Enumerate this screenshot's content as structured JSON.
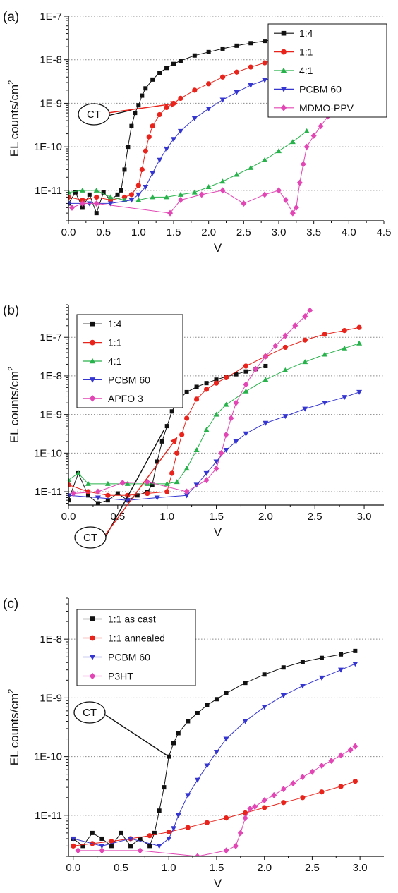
{
  "figure": {
    "colors": {
      "black": "#111111",
      "red": "#e8231b",
      "green": "#28b24b",
      "blue": "#3535d0",
      "magenta": "#e246b4",
      "grid": "#8a8a8a"
    }
  },
  "chart_data": [
    {
      "type": "scatter",
      "panel_label": "(a)",
      "xlabel": "V",
      "ylabel": "EL counts/cm",
      "ylabel_sup": "2",
      "yscale": "log",
      "xlim": [
        0.0,
        4.5
      ],
      "ylim": [
        2e-12,
        1e-07
      ],
      "xticks": [
        0.0,
        0.5,
        1.0,
        1.5,
        2.0,
        2.5,
        3.0,
        3.5,
        4.0,
        4.5
      ],
      "xtick_labels": [
        "0.0",
        "0.5",
        "1.0",
        "1.5",
        "2.0",
        "2.5",
        "3.0",
        "3.5",
        "4.0",
        "4.5"
      ],
      "yticks": [
        1e-11,
        1e-10,
        1e-09,
        1e-08,
        1e-07
      ],
      "ytick_labels": [
        "1E-11",
        "1E-10",
        "1E-9",
        "1E-8",
        "1E-7"
      ],
      "grid": "horizontal dotted at decades",
      "legend_position": "top-right",
      "annotation": {
        "text": "CT",
        "points_to": [
          [
            0.9,
            7e-10
          ],
          [
            1.55,
            1e-09
          ]
        ]
      },
      "series": [
        {
          "name": "1:4",
          "color": "black",
          "marker": "square",
          "x": [
            0.0,
            0.1,
            0.2,
            0.3,
            0.4,
            0.5,
            0.6,
            0.7,
            0.75,
            0.8,
            0.85,
            0.9,
            0.95,
            1.0,
            1.05,
            1.1,
            1.2,
            1.3,
            1.4,
            1.5,
            1.6,
            1.8,
            2.0,
            2.2,
            2.4,
            2.6,
            2.8,
            3.0
          ],
          "y": [
            5e-12,
            9e-12,
            4e-12,
            8e-12,
            3e-12,
            9e-12,
            6e-12,
            8e-12,
            1e-11,
            3e-11,
            1e-10,
            3e-10,
            6e-10,
            9e-10,
            1.5e-09,
            2.2e-09,
            3.5e-09,
            5e-09,
            6.5e-09,
            8e-09,
            9.5e-09,
            1.25e-08,
            1.5e-08,
            1.8e-08,
            2.1e-08,
            2.4e-08,
            2.7e-08,
            3e-08
          ]
        },
        {
          "name": "1:1",
          "color": "red",
          "marker": "circle",
          "x": [
            0.0,
            0.2,
            0.4,
            0.6,
            0.8,
            0.9,
            1.0,
            1.05,
            1.1,
            1.15,
            1.2,
            1.3,
            1.4,
            1.5,
            1.6,
            1.8,
            2.0,
            2.2,
            2.4,
            2.6,
            2.8,
            3.0
          ],
          "y": [
            7e-12,
            6e-12,
            7e-12,
            6e-12,
            7e-12,
            8e-12,
            1.3e-11,
            3e-11,
            8e-11,
            1.7e-10,
            3e-10,
            5.5e-10,
            8e-10,
            1e-09,
            1.3e-09,
            2e-09,
            2.8e-09,
            4e-09,
            5.2e-09,
            6.8e-09,
            8.5e-09,
            1.05e-08
          ]
        },
        {
          "name": "4:1",
          "color": "green",
          "marker": "triangle-up",
          "x": [
            0.0,
            0.2,
            0.4,
            0.6,
            0.8,
            1.0,
            1.2,
            1.4,
            1.6,
            1.8,
            2.0,
            2.2,
            2.4,
            2.6,
            2.8,
            3.0,
            3.2,
            3.4
          ],
          "y": [
            9e-12,
            1e-11,
            1e-11,
            7e-12,
            6e-12,
            6e-12,
            7e-12,
            7e-12,
            8e-12,
            9e-12,
            1.2e-11,
            1.6e-11,
            2.3e-11,
            3.3e-11,
            5e-11,
            8e-11,
            1.3e-10,
            2.3e-10
          ]
        },
        {
          "name": "PCBM 60",
          "color": "blue",
          "marker": "triangle-down",
          "x": [
            0.0,
            0.3,
            0.6,
            0.9,
            1.0,
            1.1,
            1.2,
            1.3,
            1.4,
            1.5,
            1.6,
            1.8,
            2.0,
            2.2,
            2.4,
            2.6,
            2.8,
            2.9
          ],
          "y": [
            5e-12,
            5e-12,
            5e-12,
            6e-12,
            8e-12,
            1.2e-11,
            2.5e-11,
            5e-11,
            9e-11,
            1.5e-10,
            2.3e-10,
            4.5e-10,
            7.5e-10,
            1.2e-09,
            1.8e-09,
            2.6e-09,
            3.4e-09,
            3.8e-09
          ]
        },
        {
          "name": "MDMO-PPV",
          "color": "magenta",
          "marker": "diamond",
          "x": [
            0.05,
            0.2,
            0.4,
            1.45,
            1.6,
            1.9,
            2.2,
            2.5,
            2.8,
            3.0,
            3.1,
            3.2,
            3.25,
            3.3,
            3.35,
            3.4,
            3.5,
            3.6,
            3.7,
            3.8,
            3.9,
            4.0,
            4.1
          ],
          "y": [
            4e-12,
            5e-12,
            5e-12,
            3e-12,
            6e-12,
            8e-12,
            1e-11,
            5e-12,
            8e-12,
            1e-11,
            6e-12,
            3e-12,
            4e-12,
            1.5e-11,
            4e-11,
            1e-10,
            1.8e-10,
            3e-10,
            5e-10,
            8e-10,
            1.2e-09,
            1.6e-09,
            2e-09
          ]
        }
      ]
    },
    {
      "type": "scatter",
      "panel_label": "(b)",
      "xlabel": "V",
      "ylabel": "EL counts/cm",
      "ylabel_sup": "2",
      "yscale": "log",
      "xlim": [
        0.0,
        3.2
      ],
      "ylim": [
        4.5e-12,
        7e-07
      ],
      "xticks": [
        0.0,
        0.5,
        1.0,
        1.5,
        2.0,
        2.5,
        3.0
      ],
      "xtick_labels": [
        "0.0",
        "0.5",
        "1.0",
        "1.5",
        "2.0",
        "2.5",
        "3.0"
      ],
      "yticks": [
        1e-11,
        1e-10,
        1e-09,
        1e-08,
        1e-07
      ],
      "ytick_labels": [
        "1E-11",
        "1E-10",
        "1E-9",
        "1E-8",
        "1E-7"
      ],
      "grid": "horizontal dotted at decades",
      "legend_position": "top-left",
      "annotation": {
        "text": "CT",
        "points_to": [
          [
            0.97,
            4e-10
          ],
          [
            1.1,
            2.5e-10
          ]
        ]
      },
      "series": [
        {
          "name": "1:4",
          "color": "black",
          "marker": "square",
          "x": [
            0.0,
            0.1,
            0.2,
            0.3,
            0.4,
            0.5,
            0.6,
            0.7,
            0.8,
            0.85,
            0.9,
            0.95,
            1.0,
            1.05,
            1.1,
            1.2,
            1.3,
            1.4,
            1.5,
            1.6,
            1.7,
            1.8,
            1.9,
            2.0
          ],
          "y": [
            6e-12,
            3e-11,
            8e-12,
            5e-12,
            6e-12,
            9e-12,
            6e-12,
            8e-12,
            1e-11,
            1.5e-11,
            6e-11,
            2e-10,
            5e-10,
            1.2e-09,
            2.2e-09,
            3.8e-09,
            5.2e-09,
            6.5e-09,
            8e-09,
            9.5e-09,
            1.1e-08,
            1.3e-08,
            1.5e-08,
            1.8e-08
          ]
        },
        {
          "name": "1:1",
          "color": "red",
          "marker": "circle",
          "x": [
            0.0,
            0.2,
            0.4,
            0.6,
            0.8,
            1.0,
            1.05,
            1.1,
            1.15,
            1.2,
            1.3,
            1.4,
            1.5,
            1.6,
            1.8,
            2.0,
            2.2,
            2.4,
            2.6,
            2.8,
            2.95
          ],
          "y": [
            1.5e-11,
            1e-11,
            8e-12,
            8e-12,
            9e-12,
            1e-11,
            3e-11,
            1e-10,
            3e-10,
            8e-10,
            2.5e-09,
            4.5e-09,
            6.5e-09,
            9e-09,
            1.8e-08,
            3.2e-08,
            5.5e-08,
            8.5e-08,
            1.2e-07,
            1.5e-07,
            1.8e-07
          ]
        },
        {
          "name": "4:1",
          "color": "green",
          "marker": "triangle-up",
          "x": [
            0.0,
            0.1,
            0.2,
            0.4,
            0.6,
            0.8,
            1.0,
            1.1,
            1.2,
            1.3,
            1.4,
            1.5,
            1.6,
            1.8,
            2.0,
            2.2,
            2.4,
            2.6,
            2.8,
            2.95
          ],
          "y": [
            2e-11,
            3e-11,
            1.6e-11,
            1.6e-11,
            1.6e-11,
            1.6e-11,
            1.6e-11,
            1.8e-11,
            4e-11,
            1.2e-10,
            4e-10,
            1e-09,
            1.8e-09,
            4e-09,
            8e-09,
            1.4e-08,
            2.3e-08,
            3.6e-08,
            5.2e-08,
            7e-08
          ]
        },
        {
          "name": "PCBM 60",
          "color": "blue",
          "marker": "triangle-down",
          "x": [
            0.0,
            0.3,
            0.6,
            0.9,
            1.2,
            1.3,
            1.4,
            1.5,
            1.6,
            1.7,
            1.8,
            2.0,
            2.2,
            2.4,
            2.6,
            2.8,
            2.95
          ],
          "y": [
            8e-12,
            7e-12,
            6e-12,
            7e-12,
            8e-12,
            1.5e-11,
            3e-11,
            6e-11,
            1.2e-10,
            2e-10,
            3.2e-10,
            6e-10,
            9e-10,
            1.4e-09,
            2e-09,
            2.8e-09,
            3.8e-09
          ]
        },
        {
          "name": "APFO 3",
          "color": "magenta",
          "marker": "diamond",
          "x": [
            0.05,
            0.3,
            0.55,
            0.8,
            1.2,
            1.4,
            1.5,
            1.55,
            1.6,
            1.65,
            1.7,
            1.8,
            1.9,
            2.0,
            2.1,
            2.2,
            2.3,
            2.4,
            2.45
          ],
          "y": [
            9e-12,
            1e-11,
            1.7e-11,
            1.8e-11,
            1e-11,
            2e-11,
            4e-11,
            1e-10,
            3e-10,
            8e-10,
            2e-09,
            6e-09,
            1.5e-08,
            3.2e-08,
            6e-08,
            1.1e-07,
            2e-07,
            3.5e-07,
            5e-07
          ]
        }
      ]
    },
    {
      "type": "scatter",
      "panel_label": "(c)",
      "xlabel": "V",
      "ylabel": "EL counts/cm",
      "ylabel_sup": "2",
      "yscale": "log",
      "xlim": [
        -0.05,
        3.25
      ],
      "ylim": [
        2e-12,
        5e-08
      ],
      "xticks": [
        0.0,
        0.5,
        1.0,
        1.5,
        2.0,
        2.5,
        3.0
      ],
      "xtick_labels": [
        "0.0",
        "0.5",
        "1.0",
        "1.5",
        "2.0",
        "2.5",
        "3.0"
      ],
      "yticks": [
        1e-11,
        1e-10,
        1e-09,
        1e-08
      ],
      "ytick_labels": [
        "1E-11",
        "1E-10",
        "1E-9",
        "1E-8"
      ],
      "grid": "horizontal dotted at decades",
      "legend_position": "top-left",
      "annotation": {
        "text": "CT",
        "points_to": [
          [
            1.0,
            1e-10
          ]
        ]
      },
      "series": [
        {
          "name": "1:1 as cast",
          "color": "black",
          "marker": "square",
          "x": [
            0.0,
            0.1,
            0.2,
            0.3,
            0.4,
            0.5,
            0.6,
            0.7,
            0.8,
            0.85,
            0.9,
            0.95,
            1.0,
            1.05,
            1.1,
            1.2,
            1.3,
            1.4,
            1.5,
            1.6,
            1.8,
            2.0,
            2.2,
            2.4,
            2.6,
            2.8,
            2.95
          ],
          "y": [
            4e-12,
            3e-12,
            5e-12,
            4e-12,
            3e-12,
            5e-12,
            3e-12,
            4e-12,
            3e-12,
            5e-12,
            1.2e-11,
            3e-11,
            1e-10,
            1.7e-10,
            2.5e-10,
            4e-10,
            5.5e-10,
            7.5e-10,
            9.5e-10,
            1.2e-09,
            1.8e-09,
            2.5e-09,
            3.3e-09,
            4.1e-09,
            4.8e-09,
            5.5e-09,
            6.3e-09
          ]
        },
        {
          "name": "1:1 annealed",
          "color": "red",
          "marker": "circle",
          "x": [
            0.0,
            0.2,
            0.4,
            0.6,
            0.8,
            1.0,
            1.2,
            1.4,
            1.6,
            1.8,
            2.0,
            2.2,
            2.4,
            2.6,
            2.8,
            2.95
          ],
          "y": [
            3e-12,
            3.3e-12,
            3.6e-12,
            4e-12,
            4.5e-12,
            5.2e-12,
            6.2e-12,
            7.5e-12,
            9e-12,
            1.1e-11,
            1.35e-11,
            1.65e-11,
            2e-11,
            2.5e-11,
            3.1e-11,
            3.8e-11
          ]
        },
        {
          "name": "PCBM 60",
          "color": "blue",
          "marker": "triangle-down",
          "x": [
            0.0,
            0.3,
            0.6,
            0.9,
            1.0,
            1.05,
            1.1,
            1.2,
            1.3,
            1.4,
            1.5,
            1.6,
            1.8,
            2.0,
            2.2,
            2.4,
            2.6,
            2.8,
            2.95
          ],
          "y": [
            4e-12,
            3e-12,
            4e-12,
            3e-12,
            4e-12,
            6e-12,
            1e-11,
            2.2e-11,
            4e-11,
            7e-11,
            1.2e-10,
            2e-10,
            4e-10,
            7e-10,
            1.1e-09,
            1.6e-09,
            2.2e-09,
            3e-09,
            3.8e-09
          ]
        },
        {
          "name": "P3HT",
          "color": "magenta",
          "marker": "diamond",
          "x": [
            0.05,
            0.3,
            0.7,
            1.3,
            1.6,
            1.7,
            1.75,
            1.8,
            1.85,
            1.9,
            2.0,
            2.1,
            2.2,
            2.3,
            2.4,
            2.5,
            2.6,
            2.7,
            2.8,
            2.9,
            2.95
          ],
          "y": [
            2.5e-12,
            2.5e-12,
            2.5e-12,
            2e-12,
            2.5e-12,
            3e-12,
            5e-12,
            9e-12,
            1.3e-11,
            1.4e-11,
            1.8e-11,
            2.2e-11,
            2.8e-11,
            3.5e-11,
            4.5e-11,
            5.5e-11,
            7e-11,
            8.5e-11,
            1.05e-10,
            1.3e-10,
            1.5e-10
          ]
        }
      ]
    }
  ]
}
